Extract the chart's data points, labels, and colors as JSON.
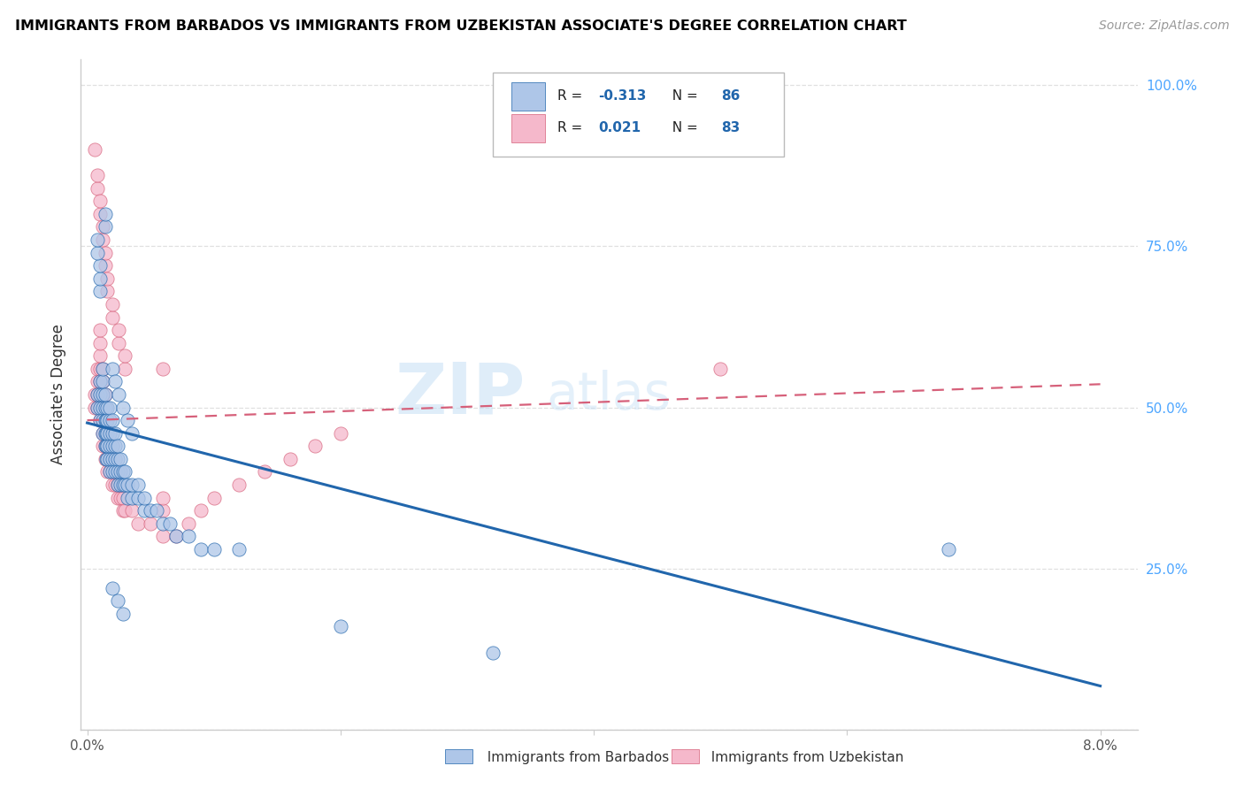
{
  "title": "IMMIGRANTS FROM BARBADOS VS IMMIGRANTS FROM UZBEKISTAN ASSOCIATE'S DEGREE CORRELATION CHART",
  "source": "Source: ZipAtlas.com",
  "ylabel": "Associate's Degree",
  "color_blue": "#aec6e8",
  "color_pink": "#f5b8cb",
  "line_blue": "#2166ac",
  "line_pink": "#d6607a",
  "watermark_zip": "ZIP",
  "watermark_atlas": "atlas",
  "blue_scatter": [
    [
      0.0008,
      0.5
    ],
    [
      0.0008,
      0.52
    ],
    [
      0.001,
      0.48
    ],
    [
      0.001,
      0.5
    ],
    [
      0.001,
      0.52
    ],
    [
      0.001,
      0.54
    ],
    [
      0.0012,
      0.46
    ],
    [
      0.0012,
      0.48
    ],
    [
      0.0012,
      0.5
    ],
    [
      0.0012,
      0.52
    ],
    [
      0.0012,
      0.54
    ],
    [
      0.0012,
      0.56
    ],
    [
      0.0014,
      0.44
    ],
    [
      0.0014,
      0.46
    ],
    [
      0.0014,
      0.48
    ],
    [
      0.0014,
      0.5
    ],
    [
      0.0014,
      0.52
    ],
    [
      0.0015,
      0.42
    ],
    [
      0.0015,
      0.44
    ],
    [
      0.0015,
      0.46
    ],
    [
      0.0015,
      0.48
    ],
    [
      0.0016,
      0.42
    ],
    [
      0.0016,
      0.44
    ],
    [
      0.0016,
      0.46
    ],
    [
      0.0016,
      0.48
    ],
    [
      0.0016,
      0.5
    ],
    [
      0.0018,
      0.4
    ],
    [
      0.0018,
      0.42
    ],
    [
      0.0018,
      0.44
    ],
    [
      0.0018,
      0.46
    ],
    [
      0.0018,
      0.48
    ],
    [
      0.0018,
      0.5
    ],
    [
      0.002,
      0.4
    ],
    [
      0.002,
      0.42
    ],
    [
      0.002,
      0.44
    ],
    [
      0.002,
      0.46
    ],
    [
      0.002,
      0.48
    ],
    [
      0.0022,
      0.4
    ],
    [
      0.0022,
      0.42
    ],
    [
      0.0022,
      0.44
    ],
    [
      0.0022,
      0.46
    ],
    [
      0.0024,
      0.38
    ],
    [
      0.0024,
      0.4
    ],
    [
      0.0024,
      0.42
    ],
    [
      0.0024,
      0.44
    ],
    [
      0.0026,
      0.38
    ],
    [
      0.0026,
      0.4
    ],
    [
      0.0026,
      0.42
    ],
    [
      0.0028,
      0.38
    ],
    [
      0.0028,
      0.4
    ],
    [
      0.003,
      0.38
    ],
    [
      0.003,
      0.4
    ],
    [
      0.0032,
      0.36
    ],
    [
      0.0032,
      0.38
    ],
    [
      0.0035,
      0.36
    ],
    [
      0.0035,
      0.38
    ],
    [
      0.004,
      0.36
    ],
    [
      0.004,
      0.38
    ],
    [
      0.0045,
      0.34
    ],
    [
      0.0045,
      0.36
    ],
    [
      0.005,
      0.34
    ],
    [
      0.0055,
      0.34
    ],
    [
      0.006,
      0.32
    ],
    [
      0.0065,
      0.32
    ],
    [
      0.007,
      0.3
    ],
    [
      0.008,
      0.3
    ],
    [
      0.009,
      0.28
    ],
    [
      0.01,
      0.28
    ],
    [
      0.012,
      0.28
    ],
    [
      0.0014,
      0.78
    ],
    [
      0.0014,
      0.8
    ],
    [
      0.001,
      0.68
    ],
    [
      0.001,
      0.7
    ],
    [
      0.001,
      0.72
    ],
    [
      0.0008,
      0.74
    ],
    [
      0.0008,
      0.76
    ],
    [
      0.002,
      0.56
    ],
    [
      0.0022,
      0.54
    ],
    [
      0.0025,
      0.52
    ],
    [
      0.0028,
      0.5
    ],
    [
      0.0032,
      0.48
    ],
    [
      0.0035,
      0.46
    ],
    [
      0.002,
      0.22
    ],
    [
      0.0024,
      0.2
    ],
    [
      0.0028,
      0.18
    ],
    [
      0.02,
      0.16
    ],
    [
      0.032,
      0.12
    ],
    [
      0.068,
      0.28
    ]
  ],
  "pink_scatter": [
    [
      0.0006,
      0.5
    ],
    [
      0.0006,
      0.52
    ],
    [
      0.0008,
      0.5
    ],
    [
      0.0008,
      0.52
    ],
    [
      0.0008,
      0.54
    ],
    [
      0.0008,
      0.56
    ],
    [
      0.001,
      0.48
    ],
    [
      0.001,
      0.5
    ],
    [
      0.001,
      0.52
    ],
    [
      0.001,
      0.54
    ],
    [
      0.001,
      0.56
    ],
    [
      0.001,
      0.58
    ],
    [
      0.001,
      0.6
    ],
    [
      0.001,
      0.62
    ],
    [
      0.0012,
      0.44
    ],
    [
      0.0012,
      0.46
    ],
    [
      0.0012,
      0.48
    ],
    [
      0.0012,
      0.5
    ],
    [
      0.0012,
      0.52
    ],
    [
      0.0012,
      0.54
    ],
    [
      0.0012,
      0.56
    ],
    [
      0.0014,
      0.42
    ],
    [
      0.0014,
      0.44
    ],
    [
      0.0014,
      0.46
    ],
    [
      0.0014,
      0.48
    ],
    [
      0.0014,
      0.5
    ],
    [
      0.0014,
      0.52
    ],
    [
      0.0016,
      0.4
    ],
    [
      0.0016,
      0.42
    ],
    [
      0.0016,
      0.44
    ],
    [
      0.0016,
      0.46
    ],
    [
      0.0016,
      0.48
    ],
    [
      0.0018,
      0.4
    ],
    [
      0.0018,
      0.42
    ],
    [
      0.0018,
      0.44
    ],
    [
      0.0018,
      0.46
    ],
    [
      0.002,
      0.38
    ],
    [
      0.002,
      0.4
    ],
    [
      0.002,
      0.42
    ],
    [
      0.002,
      0.44
    ],
    [
      0.0022,
      0.38
    ],
    [
      0.0022,
      0.4
    ],
    [
      0.0022,
      0.42
    ],
    [
      0.0024,
      0.36
    ],
    [
      0.0024,
      0.38
    ],
    [
      0.0024,
      0.4
    ],
    [
      0.0026,
      0.36
    ],
    [
      0.0026,
      0.38
    ],
    [
      0.0028,
      0.34
    ],
    [
      0.0028,
      0.36
    ],
    [
      0.003,
      0.34
    ],
    [
      0.0035,
      0.34
    ],
    [
      0.004,
      0.32
    ],
    [
      0.005,
      0.32
    ],
    [
      0.006,
      0.3
    ],
    [
      0.007,
      0.3
    ],
    [
      0.008,
      0.32
    ],
    [
      0.009,
      0.34
    ],
    [
      0.01,
      0.36
    ],
    [
      0.012,
      0.38
    ],
    [
      0.014,
      0.4
    ],
    [
      0.016,
      0.42
    ],
    [
      0.018,
      0.44
    ],
    [
      0.02,
      0.46
    ],
    [
      0.0006,
      0.9
    ],
    [
      0.0008,
      0.84
    ],
    [
      0.0008,
      0.86
    ],
    [
      0.001,
      0.8
    ],
    [
      0.001,
      0.82
    ],
    [
      0.0012,
      0.76
    ],
    [
      0.0012,
      0.78
    ],
    [
      0.0014,
      0.72
    ],
    [
      0.0014,
      0.74
    ],
    [
      0.0016,
      0.68
    ],
    [
      0.0016,
      0.7
    ],
    [
      0.002,
      0.64
    ],
    [
      0.002,
      0.66
    ],
    [
      0.0025,
      0.6
    ],
    [
      0.0025,
      0.62
    ],
    [
      0.003,
      0.56
    ],
    [
      0.003,
      0.58
    ],
    [
      0.006,
      0.56
    ],
    [
      0.05,
      0.56
    ],
    [
      0.006,
      0.34
    ],
    [
      0.006,
      0.36
    ]
  ],
  "blue_line_x": [
    0.0,
    0.08
  ],
  "blue_line_y": [
    0.476,
    0.068
  ],
  "pink_line_x": [
    0.0,
    0.08
  ],
  "pink_line_y": [
    0.48,
    0.536
  ],
  "xlim": [
    -0.0005,
    0.083
  ],
  "ylim": [
    0.0,
    1.04
  ],
  "x_tick_positions": [
    0.0,
    0.02,
    0.04,
    0.06,
    0.08
  ],
  "x_tick_labels": [
    "0.0%",
    "",
    "",
    "",
    "8.0%"
  ],
  "y_tick_positions": [
    0.0,
    0.25,
    0.5,
    0.75,
    1.0
  ],
  "y_tick_labels_right": [
    "",
    "25.0%",
    "50.0%",
    "75.0%",
    "100.0%"
  ],
  "right_tick_color": "#4da6ff",
  "grid_color": "#e0e0e0",
  "title_fontsize": 11.5,
  "source_fontsize": 10,
  "scatter_size": 120,
  "scatter_alpha": 0.75
}
